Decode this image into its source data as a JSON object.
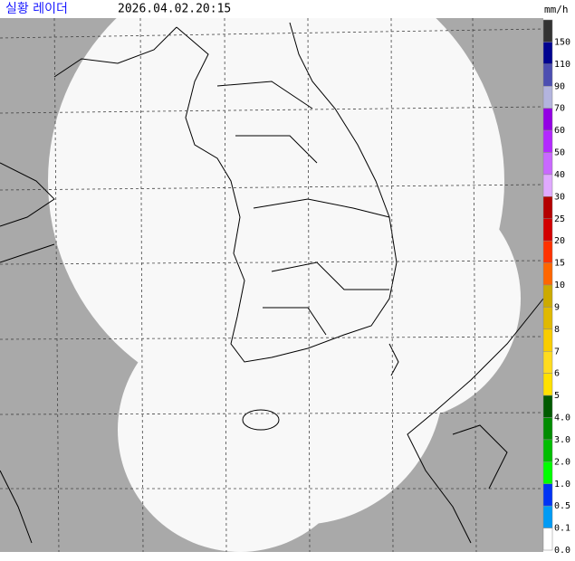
{
  "header": {
    "title": "실황 레이더",
    "timestamp": "2026.04.02.20:15",
    "unit": "mm/h"
  },
  "legend": {
    "items": [
      {
        "label": "150",
        "color": "#333333"
      },
      {
        "label": "110",
        "color": "#000390"
      },
      {
        "label": "90",
        "color": "#4c4eb1"
      },
      {
        "label": "70",
        "color": "#b3b4de"
      },
      {
        "label": "60",
        "color": "#9300e4"
      },
      {
        "label": "50",
        "color": "#b329ff"
      },
      {
        "label": "40",
        "color": "#c969ff"
      },
      {
        "label": "30",
        "color": "#e0a9ff"
      },
      {
        "label": "25",
        "color": "#b40000"
      },
      {
        "label": "20",
        "color": "#d20000"
      },
      {
        "label": "15",
        "color": "#ff3200"
      },
      {
        "label": "10",
        "color": "#ff6600"
      },
      {
        "label": "9",
        "color": "#ccaa00"
      },
      {
        "label": "8",
        "color": "#e0b900"
      },
      {
        "label": "7",
        "color": "#f9cd00"
      },
      {
        "label": "6",
        "color": "#ffdc1f"
      },
      {
        "label": "5",
        "color": "#ffe100"
      },
      {
        "label": "4.0",
        "color": "#005a00"
      },
      {
        "label": "3.0",
        "color": "#008c00"
      },
      {
        "label": "2.0",
        "color": "#00be00"
      },
      {
        "label": "1.0",
        "color": "#00ff00"
      },
      {
        "label": "0.5",
        "color": "#0033f5"
      },
      {
        "label": "0.1",
        "color": "#009bf5"
      },
      {
        "label": "0.0",
        "color": "#ffffff"
      }
    ]
  }
}
